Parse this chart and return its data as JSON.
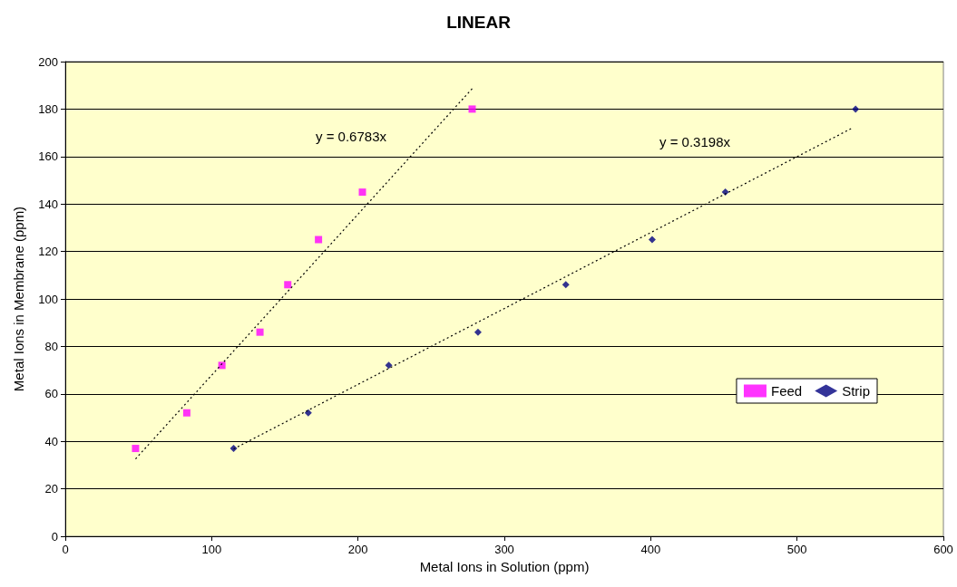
{
  "chart_data": {
    "type": "scatter",
    "title": "LINEAR",
    "xlabel": "Metal Ions in Solution (ppm)",
    "ylabel": "Metal Ions in Membrane (ppm)",
    "xlim": [
      0,
      600
    ],
    "xticks": [
      0,
      100,
      200,
      300,
      400,
      500,
      600
    ],
    "ylim": [
      0,
      200
    ],
    "yticks": [
      0,
      20,
      40,
      60,
      80,
      100,
      120,
      140,
      160,
      180,
      200
    ],
    "grid": "y",
    "legend": "right",
    "series": [
      {
        "name": "Feed",
        "color": "#ff00ff",
        "marker": "square",
        "x": [
          48,
          83,
          107,
          133,
          152,
          173,
          203,
          278
        ],
        "values": [
          37,
          52,
          72,
          86,
          106,
          125,
          145,
          180
        ]
      },
      {
        "name": "Strip",
        "color": "#000080",
        "marker": "diamond",
        "x": [
          115,
          166,
          221,
          282,
          342,
          401,
          451,
          540
        ],
        "values": [
          37,
          52,
          72,
          86,
          106,
          125,
          145,
          180
        ]
      },
      {
        "type": "line",
        "color": "#000000",
        "marker": "none",
        "line_style": "dotted",
        "x": [
          48,
          278
        ],
        "values": [
          32.6,
          188.6
        ]
      },
      {
        "type": "line",
        "color": "#000000",
        "marker": "none",
        "line_style": "dotted",
        "x": [
          115,
          538
        ],
        "values": [
          36.8,
          172.1
        ]
      }
    ],
    "annotations": [
      "y = 0.6783x",
      "y = 0.3198x"
    ]
  }
}
